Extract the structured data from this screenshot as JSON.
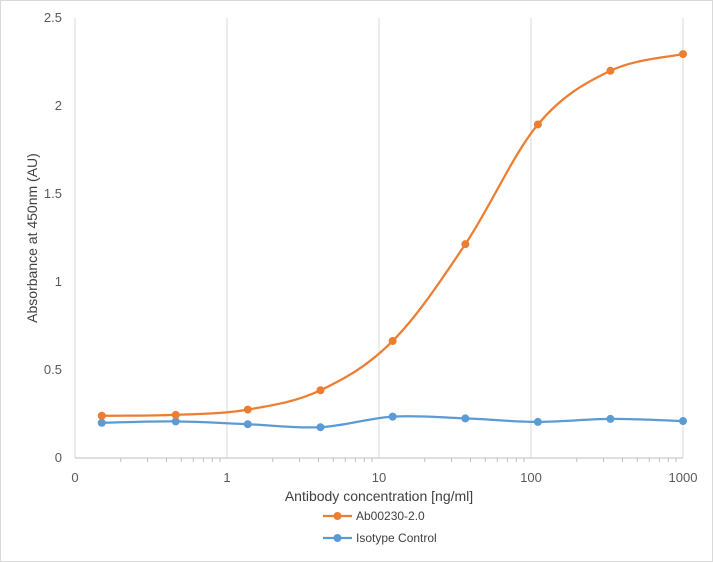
{
  "chart_data": {
    "type": "line",
    "title": "",
    "xlabel": "Antibody concentration [ng/ml]",
    "ylabel": "Absorbance at 450nm (AU)",
    "x_scale": "log",
    "x_tick_labels": [
      "0",
      "1",
      "10",
      "100",
      "1000"
    ],
    "x_tick_values": [
      0.1,
      1,
      10,
      100,
      1000
    ],
    "xlim": [
      0.1,
      1000
    ],
    "ylim": [
      0,
      2.5
    ],
    "y_ticks": [
      0,
      0.5,
      1,
      1.5,
      2,
      2.5
    ],
    "y_tick_labels": [
      "0",
      "0.5",
      "1",
      "1.5",
      "2",
      "2.5"
    ],
    "grid": "vertical-major",
    "legend_position": "bottom",
    "x": [
      0.15,
      0.46,
      1.37,
      4.12,
      12.3,
      37.0,
      111,
      333,
      1000
    ],
    "series": [
      {
        "name": "Ab00230-2.0",
        "color": "#ED7D31",
        "values": [
          0.24,
          0.245,
          0.275,
          0.385,
          0.665,
          1.215,
          1.895,
          2.2,
          2.295
        ]
      },
      {
        "name": "Isotype Control",
        "color": "#5B9BD5",
        "values": [
          0.2,
          0.208,
          0.192,
          0.175,
          0.235,
          0.225,
          0.205,
          0.222,
          0.21
        ]
      }
    ]
  }
}
